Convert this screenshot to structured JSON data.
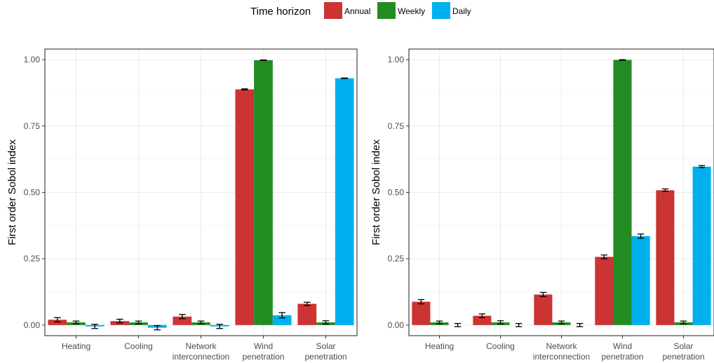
{
  "legend": {
    "title": "Time horizon",
    "items": [
      {
        "label": "Annual",
        "color": "#cc3333"
      },
      {
        "label": "Weekly",
        "color": "#228b22"
      },
      {
        "label": "Daily",
        "color": "#00b0ef"
      }
    ]
  },
  "chart_data": [
    {
      "type": "bar",
      "title": "",
      "xlabel": "",
      "ylabel": "First order Sobol index",
      "ylim": [
        -0.04,
        1.04
      ],
      "yticks": [
        "0.00",
        "0.25",
        "0.50",
        "0.75",
        "1.00"
      ],
      "categories": [
        "Heating",
        "Cooling",
        "Network\ninterconnection",
        "Wind\npenetration",
        "Solar\npenetration"
      ],
      "series": [
        {
          "name": "Annual",
          "color": "#cc3333",
          "values": [
            0.02,
            0.015,
            0.032,
            0.888,
            0.08
          ],
          "errors": [
            0.008,
            0.007,
            0.008,
            0.002,
            0.006
          ]
        },
        {
          "name": "Weekly",
          "color": "#228b22",
          "values": [
            0.01,
            0.01,
            0.01,
            0.998,
            0.01
          ],
          "errors": [
            0.005,
            0.005,
            0.005,
            0.001,
            0.006
          ]
        },
        {
          "name": "Daily",
          "color": "#00b0ef",
          "values": [
            -0.005,
            -0.01,
            -0.005,
            0.037,
            0.93
          ],
          "errors": [
            0.008,
            0.008,
            0.008,
            0.01,
            0.001
          ]
        }
      ],
      "grid": true,
      "legend_position": "top"
    },
    {
      "type": "bar",
      "title": "",
      "xlabel": "",
      "ylabel": "First order Sobol index",
      "ylim": [
        -0.04,
        1.04
      ],
      "yticks": [
        "0.00",
        "0.25",
        "0.50",
        "0.75",
        "1.00"
      ],
      "categories": [
        "Heating",
        "Cooling",
        "Network\ninterconnection",
        "Wind\npenetration",
        "Solar\npenetration"
      ],
      "series": [
        {
          "name": "Annual",
          "color": "#cc3333",
          "values": [
            0.088,
            0.035,
            0.115,
            0.257,
            0.508
          ],
          "errors": [
            0.008,
            0.007,
            0.008,
            0.007,
            0.005
          ]
        },
        {
          "name": "Weekly",
          "color": "#228b22",
          "values": [
            0.01,
            0.01,
            0.01,
            0.999,
            0.01
          ],
          "errors": [
            0.005,
            0.006,
            0.005,
            0.001,
            0.005
          ]
        },
        {
          "name": "Daily",
          "color": "#00b0ef",
          "values": [
            0.0,
            0.0,
            0.0,
            0.335,
            0.597
          ],
          "errors": [
            0.006,
            0.006,
            0.006,
            0.008,
            0.004
          ]
        }
      ],
      "grid": true,
      "legend_position": "top"
    }
  ]
}
